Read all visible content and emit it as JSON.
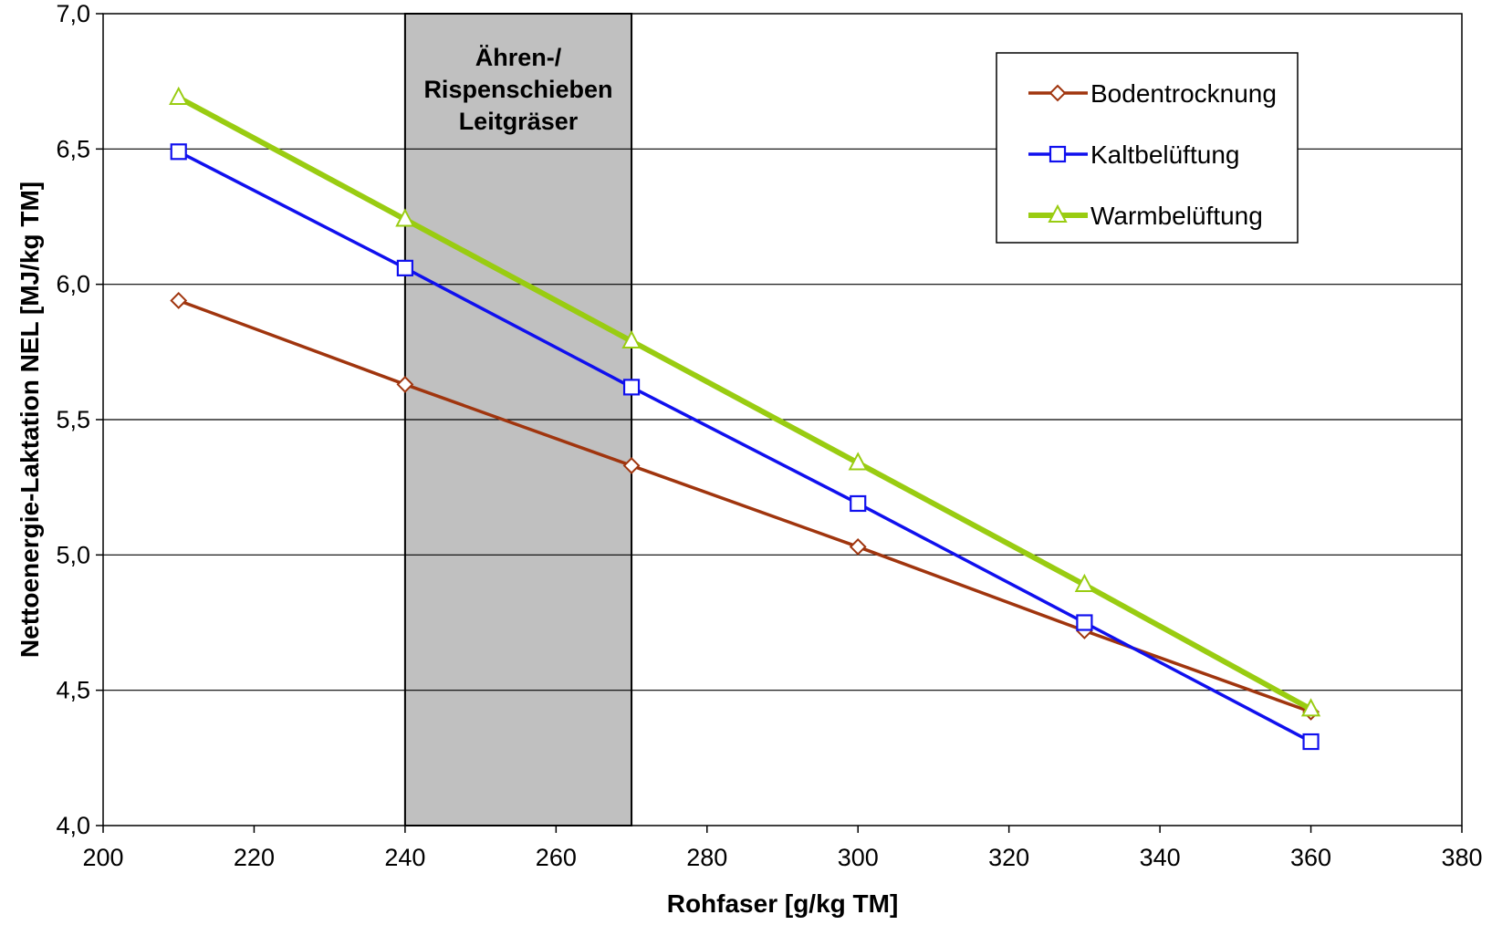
{
  "chart_data": {
    "type": "line",
    "title": "",
    "xlabel": "Rohfaser [g/kg TM]",
    "ylabel": "Nettoenergie-Laktation NEL [MJ/kg TM]",
    "xlim": [
      200,
      380
    ],
    "ylim": [
      4.0,
      7.0
    ],
    "x_ticks": [
      "200",
      "220",
      "240",
      "260",
      "280",
      "300",
      "320",
      "340",
      "360",
      "380"
    ],
    "y_ticks": [
      "4,0",
      "4,5",
      "5,0",
      "5,5",
      "6,0",
      "6,5",
      "7,0"
    ],
    "grid": "horizontal",
    "legend_position": "top-right",
    "shaded_region": {
      "x_range": [
        240,
        270
      ],
      "label_lines": [
        "Ähren-/",
        "Rispenschieben",
        "Leitgräser"
      ],
      "color": "#c0c0c0"
    },
    "series": [
      {
        "name": "Bodentrocknung",
        "color": "#a0350e",
        "marker": "diamond",
        "x": [
          210,
          240,
          270,
          300,
          330,
          360
        ],
        "values": [
          5.94,
          5.63,
          5.33,
          5.03,
          4.72,
          4.42
        ]
      },
      {
        "name": "Kaltbelüftung",
        "color": "#1010ee",
        "marker": "square",
        "x": [
          210,
          240,
          270,
          300,
          330,
          360
        ],
        "values": [
          6.49,
          6.06,
          5.62,
          5.19,
          4.75,
          4.31
        ]
      },
      {
        "name": "Warmbelüftung",
        "color": "#99cc11",
        "marker": "triangle",
        "x": [
          210,
          240,
          270,
          300,
          330,
          360
        ],
        "values": [
          6.69,
          6.24,
          5.79,
          5.34,
          4.89,
          4.43
        ]
      }
    ]
  }
}
